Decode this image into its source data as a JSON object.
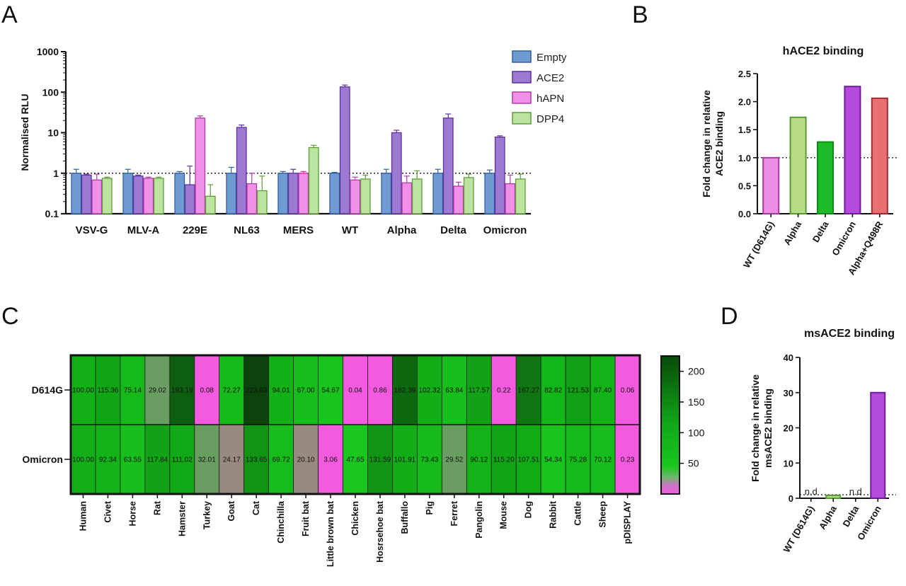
{
  "panels": {
    "A": "A",
    "B": "B",
    "C": "C",
    "D": "D"
  },
  "chart_data": [
    {
      "panel": "A",
      "type": "bar",
      "ylabel": "Normalised RLU",
      "yscale": "log",
      "ylim": [
        0.1,
        1000
      ],
      "yticks": [
        "0.1",
        "1",
        "10",
        "100",
        "1000"
      ],
      "reference_line": 1,
      "legend_position": "top-right",
      "categories": [
        "VSV-G",
        "MLV-A",
        "229E",
        "NL63",
        "MERS",
        "WT",
        "Alpha",
        "Delta",
        "Omicron"
      ],
      "series": [
        {
          "name": "Empty",
          "color": "#6f9bd2",
          "edge": "#2f5f9e",
          "values": [
            1.0,
            1.0,
            1.0,
            1.0,
            1.0,
            1.0,
            1.0,
            1.0,
            1.0
          ],
          "errors": [
            1.25,
            1.25,
            1.1,
            1.4,
            1.1,
            1.05,
            1.25,
            1.25,
            1.2
          ]
        },
        {
          "name": "ACE2",
          "color": "#9d7ad2",
          "edge": "#5e2f9e",
          "values": [
            0.9,
            0.85,
            0.52,
            13.5,
            1.0,
            135,
            10,
            23,
            7.8
          ],
          "errors": [
            0.95,
            0.9,
            1.5,
            15.5,
            1.25,
            150,
            11.5,
            29,
            8.4
          ]
        },
        {
          "name": "hAPN",
          "color": "#f090e6",
          "edge": "#b03aa6",
          "values": [
            0.68,
            0.75,
            23,
            0.55,
            1.0,
            0.68,
            0.58,
            0.48,
            0.55
          ],
          "errors": [
            0.95,
            0.8,
            26,
            1.0,
            1.1,
            0.8,
            0.85,
            0.6,
            0.9
          ]
        },
        {
          "name": "DPP4",
          "color": "#bde3a0",
          "edge": "#5d9e3a",
          "values": [
            0.75,
            0.75,
            0.27,
            0.37,
            4.3,
            0.72,
            0.72,
            0.78,
            0.72
          ],
          "errors": [
            0.8,
            0.8,
            0.52,
            0.85,
            4.9,
            0.9,
            1.15,
            0.95,
            0.95
          ]
        }
      ]
    },
    {
      "panel": "B",
      "type": "bar",
      "title": "hACE2 binding",
      "ylabel": "Fold change in relative ACE2 binding",
      "ylim": [
        0,
        2.5
      ],
      "yticks": [
        "0.0",
        "0.5",
        "1.0",
        "1.5",
        "2.0",
        "2.5"
      ],
      "reference_line": 1.0,
      "categories": [
        "WT (D614G)",
        "Alpha",
        "Delta",
        "Omicron",
        "Alpha+Q498R"
      ],
      "values": [
        1.0,
        1.72,
        1.28,
        2.27,
        2.06
      ],
      "colors": [
        "#ee8de6",
        "#b7dc85",
        "#1dbb2a",
        "#b54bdc",
        "#e86f72"
      ],
      "edges": [
        "#a53a9e",
        "#5a9a32",
        "#108a18",
        "#6d1d9a",
        "#a82a32"
      ]
    },
    {
      "panel": "C",
      "type": "heatmap",
      "rows": [
        "D614G",
        "Omicron"
      ],
      "columns": [
        "Human",
        "Civet",
        "Horse",
        "Rat",
        "Hamster",
        "Turkey",
        "Goat",
        "Cat",
        "Chinchilla",
        "Fruit bat",
        "Little brown bat",
        "Chicken",
        "Hosrsehoe bat",
        "Buffallo",
        "Pig",
        "Ferret",
        "Pangolin",
        "Mouse",
        "Dog",
        "Rabbit",
        "Cattle",
        "Sheep",
        "pDISPLAY"
      ],
      "values": [
        [
          "100.00",
          "115.36",
          "75.14",
          "29.02",
          "193.19",
          "0.08",
          "72.27",
          "223.63",
          "94.01",
          "67.00",
          "54.67",
          "0.04",
          "0.86",
          "182.39",
          "102.32",
          "63.84",
          "117.57",
          "0.22",
          "167.27",
          "82.82",
          "121.53",
          "87.40",
          "0.06"
        ],
        [
          "100.00",
          "92.34",
          "63.55",
          "117.84",
          "111.02",
          "32.01",
          "24.17",
          "133.65",
          "69.72",
          "20.10",
          "3.06",
          "47.65",
          "131.59",
          "101.91",
          "73.43",
          "29.52",
          "90.12",
          "115.20",
          "107.51",
          "54.34",
          "75.28",
          "70.12",
          "0.23"
        ]
      ],
      "colorbar_ticks": [
        "200",
        "150",
        "100",
        "50"
      ],
      "colorbar_range": [
        0,
        225
      ]
    },
    {
      "panel": "D",
      "type": "bar",
      "title": "msACE2 binding",
      "ylabel": "Fold change in relative msACE2 binding",
      "ylim": [
        0,
        40
      ],
      "yticks": [
        "0",
        "10",
        "20",
        "30",
        "40"
      ],
      "reference_line": 1,
      "categories": [
        "WT (D614G)",
        "Alpha",
        "Delta",
        "Omicron"
      ],
      "values": [
        0,
        0.8,
        0,
        30
      ],
      "labels": [
        "n.d",
        "",
        "n.d",
        ""
      ],
      "colors": [
        "#ee8de6",
        "#b7dc85",
        "#1dbb2a",
        "#b54bdc"
      ],
      "edges": [
        "#a53a9e",
        "#5a9a32",
        "#108a18",
        "#6d1d9a"
      ]
    }
  ]
}
